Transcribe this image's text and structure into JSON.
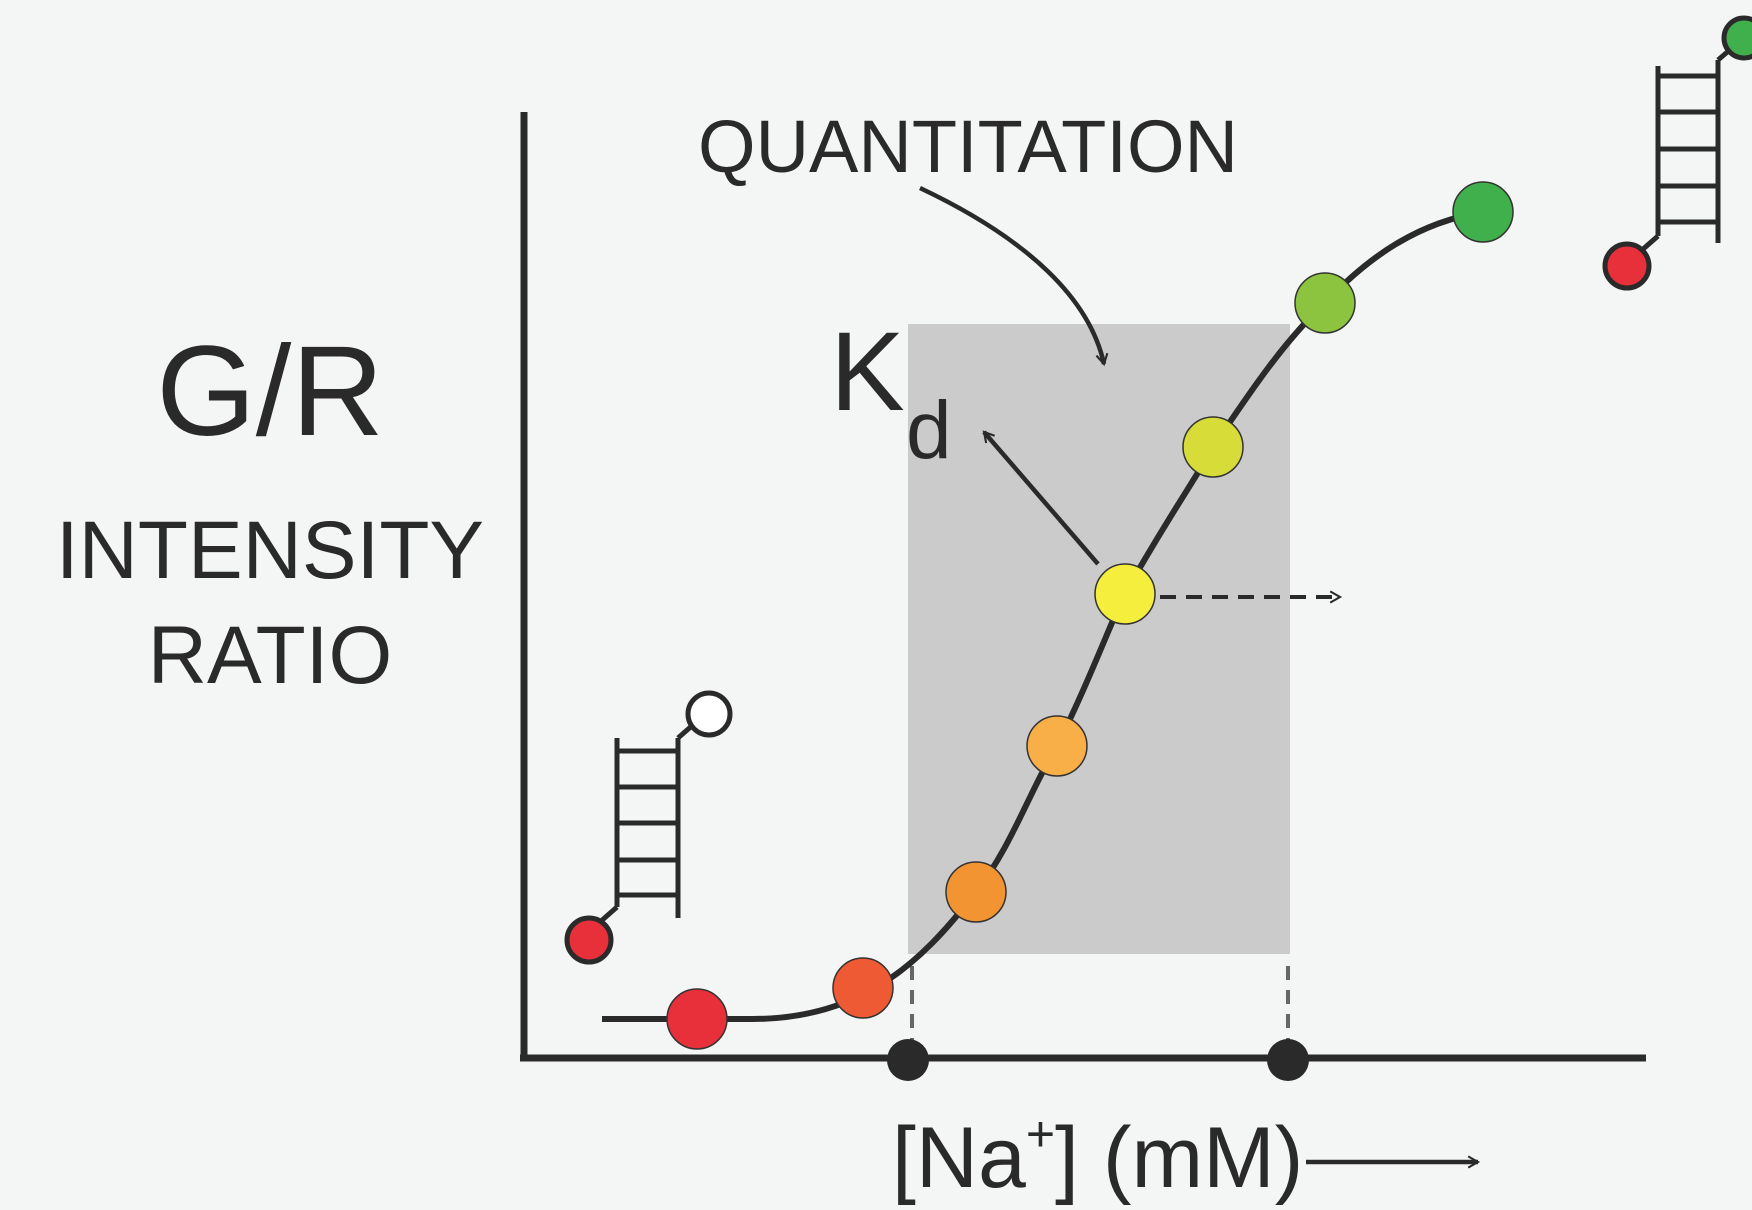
{
  "colors": {
    "background": "#f4f6f5",
    "ink": "#2a2a2a",
    "shade": "#cbcbcb"
  },
  "labels": {
    "y_main": "G/R",
    "y_sub_1": "INTENSITY",
    "y_sub_2": "RATIO",
    "quantitation": "QUANTITATION",
    "kd_main": "K",
    "kd_sub": "d",
    "x_axis_main": "[Na",
    "x_axis_sup": "+",
    "x_axis_end": "] (mM)"
  },
  "points": [
    {
      "color": "#e8303a"
    },
    {
      "color": "#ee5a34"
    },
    {
      "color": "#f39432"
    },
    {
      "color": "#f8af48"
    },
    {
      "color": "#f6ee3c"
    },
    {
      "color": "#d8dc38"
    },
    {
      "color": "#8cc440"
    },
    {
      "color": "#40b04c"
    }
  ],
  "icons": {
    "low_state": "hairpin-icon",
    "high_state": "hairpin-icon"
  }
}
